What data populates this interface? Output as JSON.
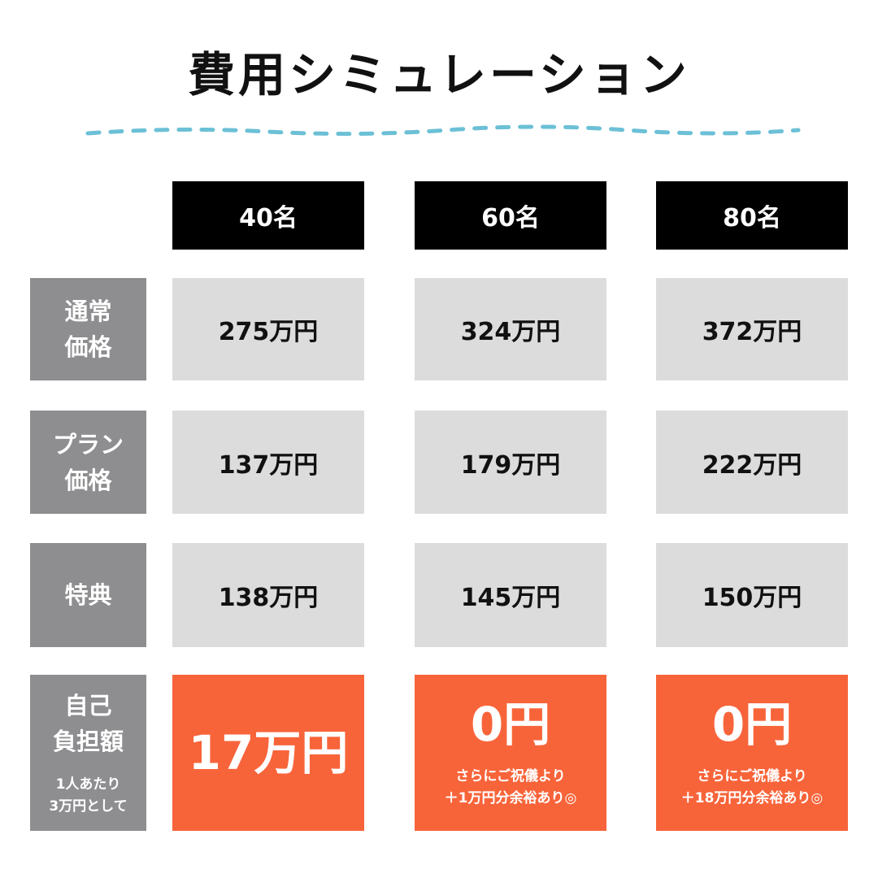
{
  "title": "費用シミュレーション",
  "colors": {
    "header_bg": "#000000",
    "row_label_bg": "#8e8e91",
    "cell_bg": "#dcdcdc",
    "highlight_bg": "#f8643a",
    "wave": "#6cc0d6"
  },
  "columns": [
    "40名",
    "60名",
    "80名"
  ],
  "rows": {
    "regular": {
      "label_line1": "通常",
      "label_line2": "価格",
      "values": [
        "275万円",
        "324万円",
        "372万円"
      ]
    },
    "plan": {
      "label_line1": "プラン",
      "label_line2": "価格",
      "values": [
        "137万円",
        "179万円",
        "222万円"
      ]
    },
    "bonus": {
      "label": "特典",
      "values": [
        "138万円",
        "145万円",
        "150万円"
      ]
    },
    "self_pay": {
      "label_line1": "自己",
      "label_line2": "負担額",
      "note_line1": "1人あたり",
      "note_line2": "3万円として",
      "values": [
        "17万円",
        "0円",
        "0円"
      ],
      "notes": [
        null,
        {
          "line1": "さらにご祝儀より",
          "line2": "＋1万円分余裕あり◎"
        },
        {
          "line1": "さらにご祝儀より",
          "line2": "＋18万円分余裕あり◎"
        }
      ]
    }
  }
}
